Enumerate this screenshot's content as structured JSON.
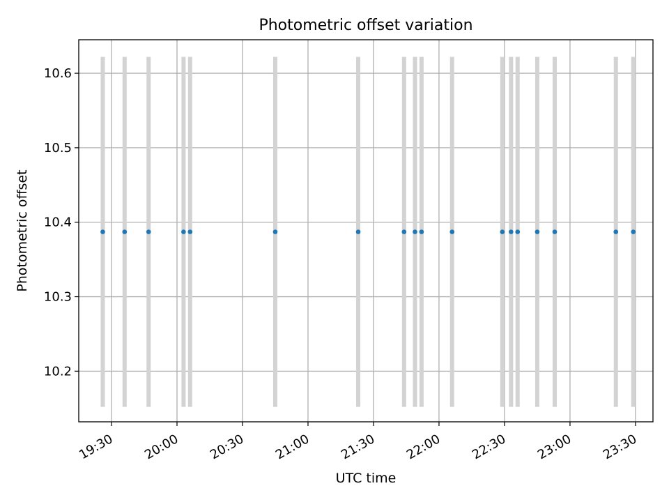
{
  "chart_data": {
    "type": "scatter",
    "title": "Photometric offset variation",
    "xlabel": "UTC time",
    "ylabel": "Photometric offset",
    "x_ticks": [
      "19:30",
      "20:00",
      "20:30",
      "21:00",
      "21:30",
      "22:00",
      "22:30",
      "23:00",
      "23:30"
    ],
    "y_ticks": [
      "10.2",
      "10.3",
      "10.4",
      "10.5",
      "10.6"
    ],
    "xlim": [
      "19:15",
      "23:38"
    ],
    "ylim": [
      10.132,
      10.645
    ],
    "grid": true,
    "point_color": "#1f77b4",
    "band_color": "#d3d3d3",
    "band_range": [
      10.152,
      10.622
    ],
    "x": [
      "19:26",
      "19:36",
      "19:47",
      "20:03",
      "20:06",
      "20:45",
      "21:23",
      "21:44",
      "21:49",
      "21:52",
      "22:06",
      "22:29",
      "22:33",
      "22:36",
      "22:45",
      "22:53",
      "23:21",
      "23:29"
    ],
    "y": [
      10.387,
      10.387,
      10.387,
      10.387,
      10.387,
      10.387,
      10.387,
      10.387,
      10.387,
      10.387,
      10.387,
      10.387,
      10.387,
      10.387,
      10.387,
      10.387,
      10.387,
      10.387
    ]
  }
}
